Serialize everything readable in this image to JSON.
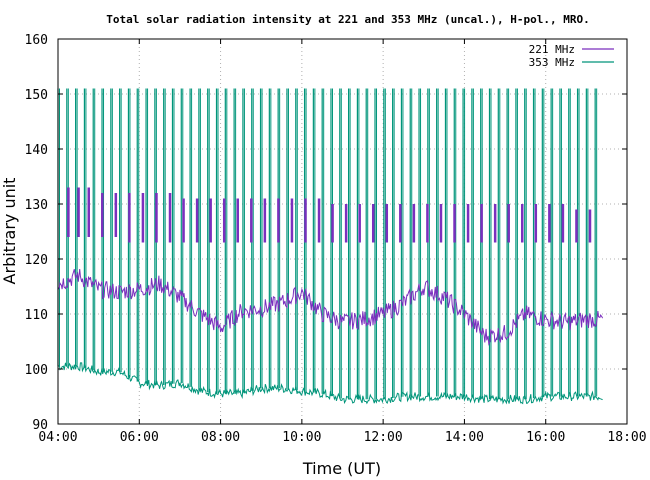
{
  "chart_data": {
    "type": "line",
    "title": "Total solar radiation intensity at 221 and 353 MHz (uncal.), H-pol., MRO.",
    "xlabel": "Time (UT)",
    "ylabel": "Arbitrary unit",
    "xlim": [
      "04:00",
      "18:00"
    ],
    "ylim": [
      90,
      160
    ],
    "x_ticks": [
      "04:00",
      "06:00",
      "08:00",
      "10:00",
      "12:00",
      "14:00",
      "16:00",
      "18:00"
    ],
    "y_ticks": [
      "90",
      "100",
      "110",
      "120",
      "130",
      "140",
      "150",
      "160"
    ],
    "grid": true,
    "legend_position": "top-right",
    "series": [
      {
        "name": "221 MHz",
        "color": "#7b2fbe",
        "x": [
          "04:00",
          "04:30",
          "05:00",
          "05:30",
          "06:00",
          "06:30",
          "07:00",
          "07:30",
          "08:00",
          "08:30",
          "09:00",
          "09:30",
          "10:00",
          "10:30",
          "11:00",
          "11:30",
          "12:00",
          "12:30",
          "13:00",
          "13:30",
          "14:00",
          "14:30",
          "15:00",
          "15:30",
          "16:00",
          "16:30",
          "17:00",
          "17:25"
        ],
        "values": [
          115.5,
          117,
          114.5,
          114,
          114.5,
          115.5,
          113,
          110,
          107.5,
          110.5,
          111,
          112,
          114,
          110,
          108.5,
          109,
          110,
          112,
          115,
          113,
          110,
          106,
          106.5,
          110,
          109,
          108.5,
          109,
          109
        ],
        "calibration_pulses": {
          "x": [
            "04:15",
            "04:30",
            "04:45",
            "05:05",
            "05:25",
            "05:45",
            "06:05",
            "06:25",
            "06:45",
            "07:05",
            "07:25",
            "07:45",
            "08:05",
            "08:25",
            "08:45",
            "09:05",
            "09:25",
            "09:45",
            "10:05",
            "10:25",
            "10:45",
            "11:05",
            "11:25",
            "11:45",
            "12:05",
            "12:25",
            "12:45",
            "13:05",
            "13:25",
            "13:45",
            "14:05",
            "14:25",
            "14:45",
            "15:05",
            "15:25",
            "15:45",
            "16:05",
            "16:25",
            "16:45",
            "17:05"
          ],
          "low": [
            124,
            124,
            124,
            124,
            124,
            123,
            123,
            123,
            123,
            123,
            123,
            123,
            123,
            123,
            123,
            123,
            123,
            123,
            123,
            123,
            123,
            123,
            123,
            123,
            123,
            123,
            123,
            123,
            123,
            123,
            123,
            123,
            123,
            123,
            123,
            123,
            123,
            123,
            123,
            123
          ],
          "high": [
            133,
            133,
            133,
            132,
            132,
            132,
            132,
            132,
            132,
            131,
            131,
            131,
            131,
            131,
            131,
            131,
            131,
            131,
            131,
            131,
            130,
            130,
            130,
            130,
            130,
            130,
            130,
            130,
            130,
            130,
            130,
            130,
            130,
            130,
            130,
            130,
            130,
            130,
            129,
            129
          ]
        }
      },
      {
        "name": "353 MHz",
        "color": "#00957a",
        "x": [
          "04:00",
          "04:30",
          "05:00",
          "05:30",
          "06:00",
          "06:30",
          "07:00",
          "07:30",
          "08:00",
          "08:30",
          "09:00",
          "09:30",
          "10:00",
          "10:30",
          "11:00",
          "11:30",
          "12:00",
          "12:30",
          "13:00",
          "13:30",
          "14:00",
          "14:30",
          "15:00",
          "15:30",
          "16:00",
          "16:30",
          "17:00",
          "17:25"
        ],
        "values": [
          100.5,
          100.5,
          99.5,
          99.5,
          97.5,
          97,
          97.5,
          96,
          95.5,
          95.5,
          96.5,
          96.5,
          96,
          95.5,
          94.5,
          94.5,
          94.5,
          95,
          95,
          95,
          95,
          94.5,
          94.5,
          94.5,
          95,
          95,
          95,
          95
        ],
        "calibration_pulses": {
          "x": [
            "04:00",
            "04:13",
            "04:26",
            "04:39",
            "04:52",
            "05:05",
            "05:18",
            "05:31",
            "05:44",
            "05:57",
            "06:10",
            "06:23",
            "06:36",
            "06:49",
            "07:02",
            "07:15",
            "07:28",
            "07:41",
            "07:54",
            "08:07",
            "08:20",
            "08:33",
            "08:46",
            "08:59",
            "09:12",
            "09:25",
            "09:38",
            "09:51",
            "10:04",
            "10:17",
            "10:30",
            "10:43",
            "10:56",
            "11:09",
            "11:22",
            "11:35",
            "11:48",
            "12:01",
            "12:14",
            "12:27",
            "12:40",
            "12:53",
            "13:06",
            "13:19",
            "13:32",
            "13:45",
            "13:58",
            "14:11",
            "14:24",
            "14:37",
            "14:50",
            "15:03",
            "15:16",
            "15:29",
            "15:42",
            "15:55",
            "16:08",
            "16:21",
            "16:34",
            "16:47",
            "17:00",
            "17:13"
          ],
          "peak": 151
        }
      }
    ]
  }
}
